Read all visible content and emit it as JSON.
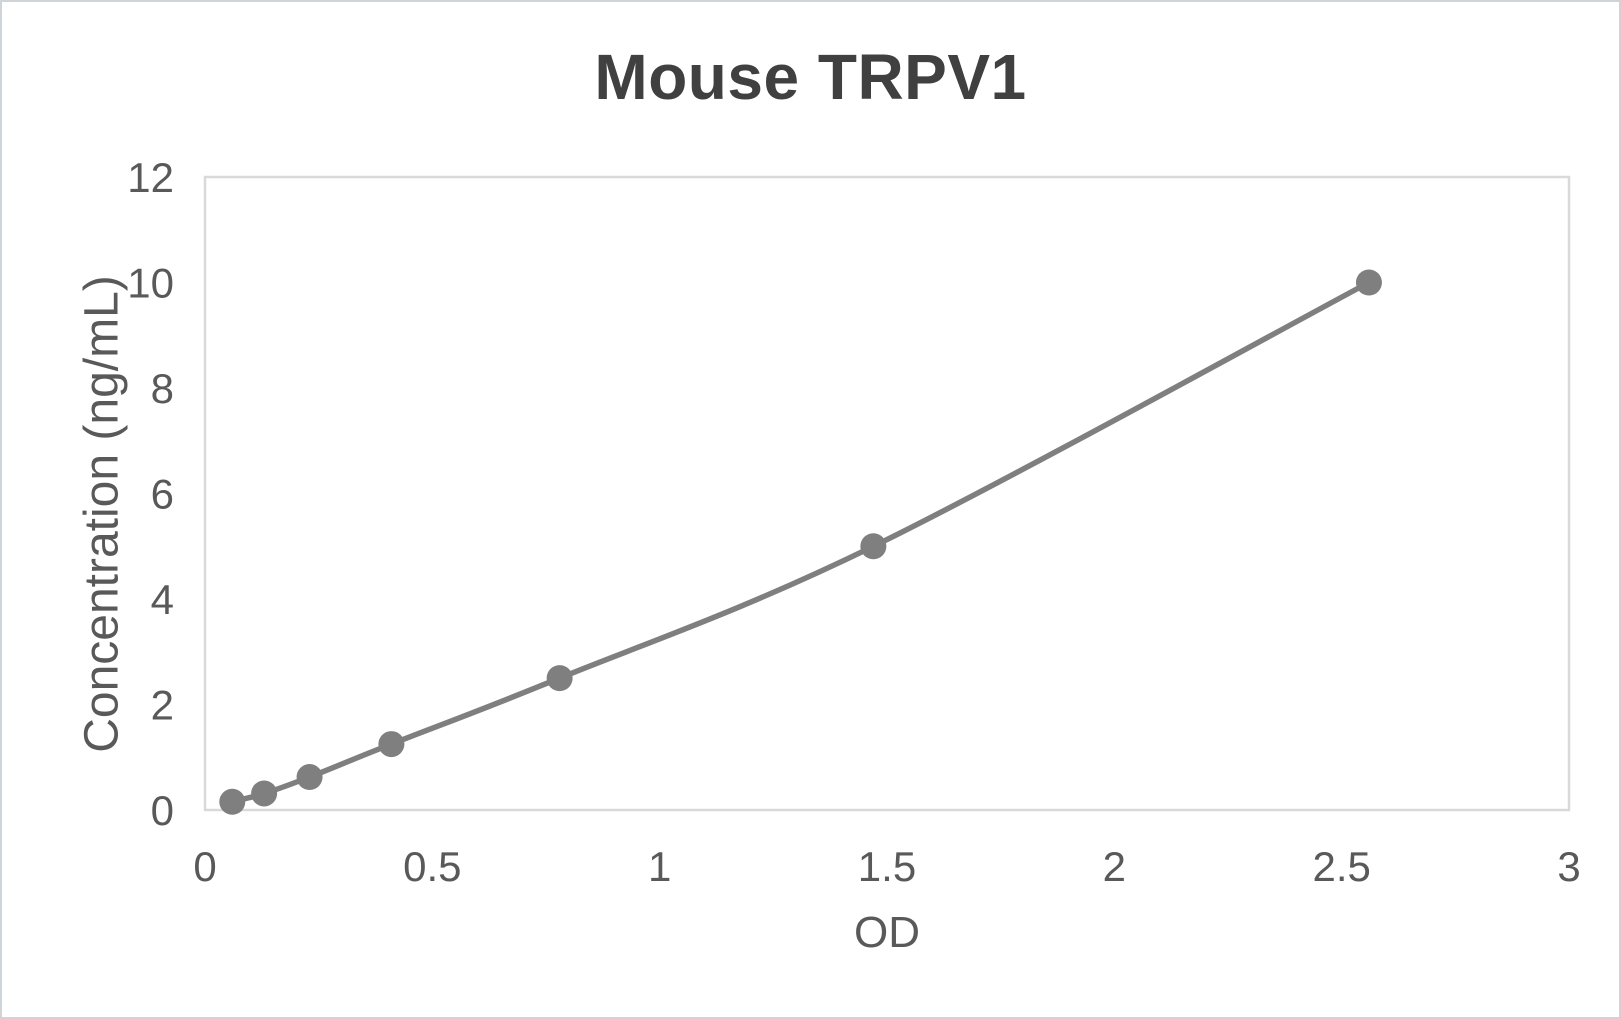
{
  "chart_data": {
    "type": "scatter",
    "title": "Mouse TRPV1",
    "xlabel": "OD",
    "ylabel": "Concentration (ng/mL)",
    "x": [
      0.06,
      0.13,
      0.23,
      0.41,
      0.78,
      1.47,
      2.56
    ],
    "y": [
      0.156,
      0.313,
      0.625,
      1.25,
      2.5,
      5,
      10
    ],
    "xlim": [
      0,
      3
    ],
    "ylim": [
      0,
      12
    ],
    "x_ticks": [
      0,
      0.5,
      1,
      1.5,
      2,
      2.5,
      3
    ],
    "y_ticks": [
      0,
      2,
      4,
      6,
      8,
      10,
      12
    ],
    "grid": false,
    "legend": "none",
    "line_smooth": true,
    "markers": true,
    "colors": {
      "line": "#7f7f7f",
      "marker": "#7f7f7f",
      "plot_border": "#d9d9d9",
      "title_text": "#404040",
      "axis_text": "#595959",
      "canvas_border": "#cfd4d8",
      "background": "#ffffff"
    }
  }
}
